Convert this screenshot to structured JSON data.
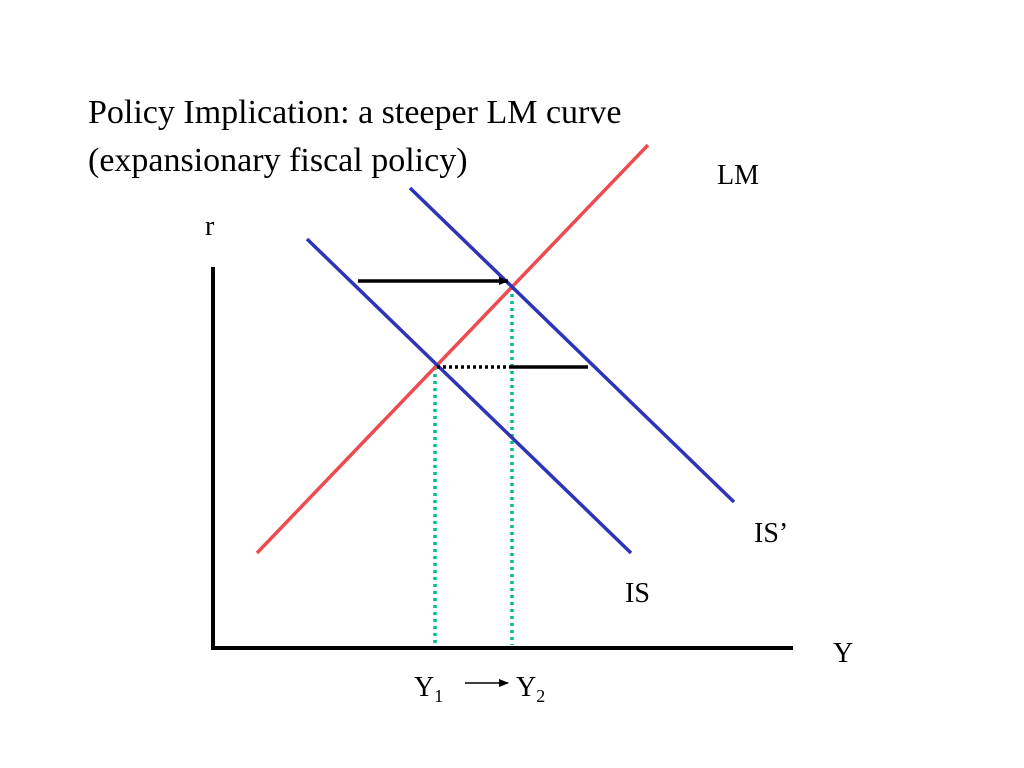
{
  "title": [
    "Policy Implication: a steeper LM curve",
    "(expansionary fiscal policy)"
  ],
  "labels": {
    "lm": "LM",
    "r": "r",
    "is_shifted": "IS’",
    "is": "IS",
    "y": "Y",
    "y1": {
      "base": "Y",
      "sub": "1"
    },
    "y2": {
      "base": "Y",
      "sub": "2"
    }
  }
}
